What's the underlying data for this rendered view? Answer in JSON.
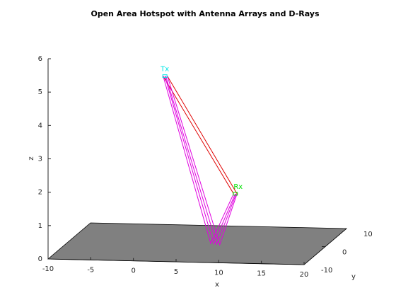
{
  "chart_data": {
    "type": "line3d",
    "title": "Open Area Hotspot with Antenna Arrays and D-Rays",
    "x_label": "x",
    "y_label": "y",
    "z_label": "z",
    "xlim": [
      -10,
      20
    ],
    "ylim": [
      -10,
      10
    ],
    "zlim": [
      0,
      6
    ],
    "xticks": [
      -10,
      -5,
      0,
      5,
      10,
      15,
      20
    ],
    "yticks": [
      -10,
      0,
      10
    ],
    "zticks": [
      0,
      1,
      2,
      3,
      4,
      5,
      6
    ],
    "ground_color": "#808080",
    "tx": {
      "label": "Tx",
      "color": "#00e5e5",
      "x": 1.2,
      "y": 0,
      "z": 5
    },
    "rx": {
      "label": "Rx",
      "color": "#00e000",
      "x": 10.7,
      "y": -5,
      "z": 1.8
    },
    "rays": [
      {
        "color": "#e00000",
        "x": [
          1.0,
          10.5
        ],
        "y": [
          0,
          -5
        ],
        "z": [
          5.0,
          1.8
        ]
      },
      {
        "color": "#e00000",
        "x": [
          1.5,
          10.9
        ],
        "y": [
          0,
          -5
        ],
        "z": [
          5.0,
          1.8
        ]
      },
      {
        "color": "#e000e0",
        "x": [
          1.0,
          6.5,
          10.5
        ],
        "y": [
          0,
          0.3,
          -5
        ],
        "z": [
          5.0,
          0,
          1.8
        ]
      },
      {
        "color": "#e000e0",
        "x": [
          1.2,
          6.9,
          10.7
        ],
        "y": [
          0,
          0.1,
          -5
        ],
        "z": [
          5.0,
          0,
          1.8
        ]
      },
      {
        "color": "#e000e0",
        "x": [
          1.3,
          7.3,
          10.8
        ],
        "y": [
          0,
          -0.1,
          -5
        ],
        "z": [
          5.0,
          0,
          1.8
        ]
      },
      {
        "color": "#e000e0",
        "x": [
          1.5,
          7.7,
          10.9
        ],
        "y": [
          0,
          -0.3,
          -5
        ],
        "z": [
          5.0,
          0,
          1.8
        ]
      }
    ]
  }
}
